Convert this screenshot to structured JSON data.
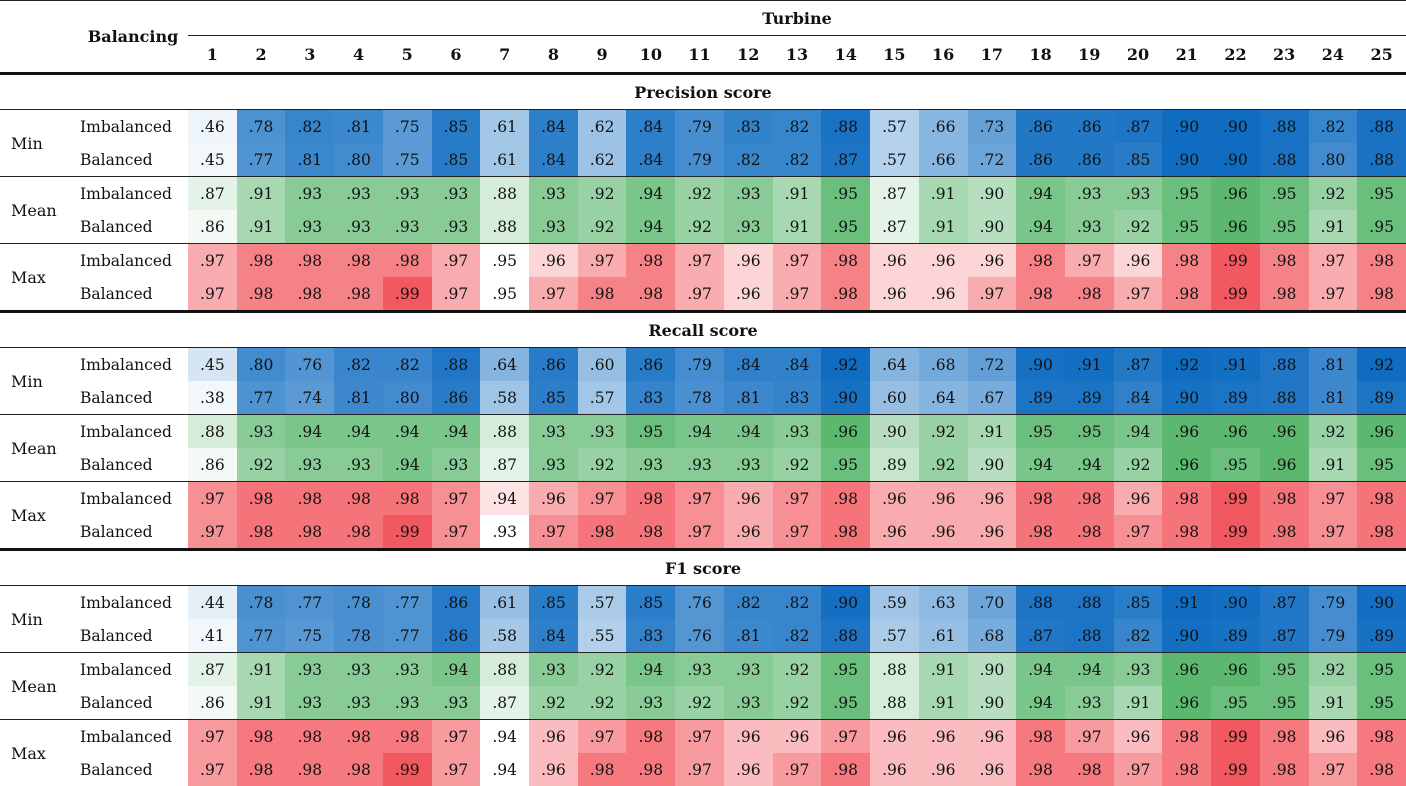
{
  "header": {
    "balancing_label": "Balancing",
    "turbine_label": "Turbine",
    "turbines": [
      "1",
      "2",
      "3",
      "4",
      "5",
      "6",
      "7",
      "8",
      "9",
      "10",
      "11",
      "12",
      "13",
      "14",
      "15",
      "16",
      "17",
      "18",
      "19",
      "20",
      "21",
      "22",
      "23",
      "24",
      "25"
    ]
  },
  "colors": {
    "min_scale": [
      "#f2f7fb",
      "#0f6cc1"
    ],
    "mean_scale": [
      "#f3f9f4",
      "#5cb86f"
    ],
    "max_scale": [
      "#ffffff",
      "#f2585f"
    ]
  },
  "sections": [
    {
      "title": "Precision score",
      "groups": [
        {
          "label": "Min",
          "kind": "min",
          "rows": [
            {
              "label": "Imbalanced",
              "values": [
                ".46",
                ".78",
                ".82",
                ".81",
                ".75",
                ".85",
                ".61",
                ".84",
                ".62",
                ".84",
                ".79",
                ".83",
                ".82",
                ".88",
                ".57",
                ".66",
                ".73",
                ".86",
                ".86",
                ".87",
                ".90",
                ".90",
                ".88",
                ".82",
                ".88"
              ]
            },
            {
              "label": "Balanced",
              "values": [
                ".45",
                ".77",
                ".81",
                ".80",
                ".75",
                ".85",
                ".61",
                ".84",
                ".62",
                ".84",
                ".79",
                ".82",
                ".82",
                ".87",
                ".57",
                ".66",
                ".72",
                ".86",
                ".86",
                ".85",
                ".90",
                ".90",
                ".88",
                ".80",
                ".88"
              ]
            }
          ]
        },
        {
          "label": "Mean",
          "kind": "mean",
          "rows": [
            {
              "label": "Imbalanced",
              "values": [
                ".87",
                ".91",
                ".93",
                ".93",
                ".93",
                ".93",
                ".88",
                ".93",
                ".92",
                ".94",
                ".92",
                ".93",
                ".91",
                ".95",
                ".87",
                ".91",
                ".90",
                ".94",
                ".93",
                ".93",
                ".95",
                ".96",
                ".95",
                ".92",
                ".95"
              ]
            },
            {
              "label": "Balanced",
              "values": [
                ".86",
                ".91",
                ".93",
                ".93",
                ".93",
                ".93",
                ".88",
                ".93",
                ".92",
                ".94",
                ".92",
                ".93",
                ".91",
                ".95",
                ".87",
                ".91",
                ".90",
                ".94",
                ".93",
                ".92",
                ".95",
                ".96",
                ".95",
                ".91",
                ".95"
              ]
            }
          ]
        },
        {
          "label": "Max",
          "kind": "max",
          "rows": [
            {
              "label": "Imbalanced",
              "values": [
                ".97",
                ".98",
                ".98",
                ".98",
                ".98",
                ".97",
                ".95",
                ".96",
                ".97",
                ".98",
                ".97",
                ".96",
                ".97",
                ".98",
                ".96",
                ".96",
                ".96",
                ".98",
                ".97",
                ".96",
                ".98",
                ".99",
                ".98",
                ".97",
                ".98"
              ]
            },
            {
              "label": "Balanced",
              "values": [
                ".97",
                ".98",
                ".98",
                ".98",
                ".99",
                ".97",
                ".95",
                ".97",
                ".98",
                ".98",
                ".97",
                ".96",
                ".97",
                ".98",
                ".96",
                ".96",
                ".97",
                ".98",
                ".98",
                ".97",
                ".98",
                ".99",
                ".98",
                ".97",
                ".98"
              ]
            }
          ]
        }
      ]
    },
    {
      "title": "Recall score",
      "groups": [
        {
          "label": "Min",
          "kind": "min",
          "rows": [
            {
              "label": "Imbalanced",
              "values": [
                ".45",
                ".80",
                ".76",
                ".82",
                ".82",
                ".88",
                ".64",
                ".86",
                ".60",
                ".86",
                ".79",
                ".84",
                ".84",
                ".92",
                ".64",
                ".68",
                ".72",
                ".90",
                ".91",
                ".87",
                ".92",
                ".91",
                ".88",
                ".81",
                ".92"
              ]
            },
            {
              "label": "Balanced",
              "values": [
                ".38",
                ".77",
                ".74",
                ".81",
                ".80",
                ".86",
                ".58",
                ".85",
                ".57",
                ".83",
                ".78",
                ".81",
                ".83",
                ".90",
                ".60",
                ".64",
                ".67",
                ".89",
                ".89",
                ".84",
                ".90",
                ".89",
                ".88",
                ".81",
                ".89"
              ]
            }
          ]
        },
        {
          "label": "Mean",
          "kind": "mean",
          "rows": [
            {
              "label": "Imbalanced",
              "values": [
                ".88",
                ".93",
                ".94",
                ".94",
                ".94",
                ".94",
                ".88",
                ".93",
                ".93",
                ".95",
                ".94",
                ".94",
                ".93",
                ".96",
                ".90",
                ".92",
                ".91",
                ".95",
                ".95",
                ".94",
                ".96",
                ".96",
                ".96",
                ".92",
                ".96"
              ]
            },
            {
              "label": "Balanced",
              "values": [
                ".86",
                ".92",
                ".93",
                ".93",
                ".94",
                ".93",
                ".87",
                ".93",
                ".92",
                ".93",
                ".93",
                ".93",
                ".92",
                ".95",
                ".89",
                ".92",
                ".90",
                ".94",
                ".94",
                ".92",
                ".96",
                ".95",
                ".96",
                ".91",
                ".95"
              ]
            }
          ]
        },
        {
          "label": "Max",
          "kind": "max",
          "rows": [
            {
              "label": "Imbalanced",
              "values": [
                ".97",
                ".98",
                ".98",
                ".98",
                ".98",
                ".97",
                ".94",
                ".96",
                ".97",
                ".98",
                ".97",
                ".96",
                ".97",
                ".98",
                ".96",
                ".96",
                ".96",
                ".98",
                ".98",
                ".96",
                ".98",
                ".99",
                ".98",
                ".97",
                ".98"
              ]
            },
            {
              "label": "Balanced",
              "values": [
                ".97",
                ".98",
                ".98",
                ".98",
                ".99",
                ".97",
                ".93",
                ".97",
                ".98",
                ".98",
                ".97",
                ".96",
                ".97",
                ".98",
                ".96",
                ".96",
                ".96",
                ".98",
                ".98",
                ".97",
                ".98",
                ".99",
                ".98",
                ".97",
                ".98"
              ]
            }
          ]
        }
      ]
    },
    {
      "title": "F1 score",
      "groups": [
        {
          "label": "Min",
          "kind": "min",
          "rows": [
            {
              "label": "Imbalanced",
              "values": [
                ".44",
                ".78",
                ".77",
                ".78",
                ".77",
                ".86",
                ".61",
                ".85",
                ".57",
                ".85",
                ".76",
                ".82",
                ".82",
                ".90",
                ".59",
                ".63",
                ".70",
                ".88",
                ".88",
                ".85",
                ".91",
                ".90",
                ".87",
                ".79",
                ".90"
              ]
            },
            {
              "label": "Balanced",
              "values": [
                ".41",
                ".77",
                ".75",
                ".78",
                ".77",
                ".86",
                ".58",
                ".84",
                ".55",
                ".83",
                ".76",
                ".81",
                ".82",
                ".88",
                ".57",
                ".61",
                ".68",
                ".87",
                ".88",
                ".82",
                ".90",
                ".89",
                ".87",
                ".79",
                ".89"
              ]
            }
          ]
        },
        {
          "label": "Mean",
          "kind": "mean",
          "rows": [
            {
              "label": "Imbalanced",
              "values": [
                ".87",
                ".91",
                ".93",
                ".93",
                ".93",
                ".94",
                ".88",
                ".93",
                ".92",
                ".94",
                ".93",
                ".93",
                ".92",
                ".95",
                ".88",
                ".91",
                ".90",
                ".94",
                ".94",
                ".93",
                ".96",
                ".96",
                ".95",
                ".92",
                ".95"
              ]
            },
            {
              "label": "Balanced",
              "values": [
                ".86",
                ".91",
                ".93",
                ".93",
                ".93",
                ".93",
                ".87",
                ".92",
                ".92",
                ".93",
                ".92",
                ".93",
                ".92",
                ".95",
                ".88",
                ".91",
                ".90",
                ".94",
                ".93",
                ".91",
                ".96",
                ".95",
                ".95",
                ".91",
                ".95"
              ]
            }
          ]
        },
        {
          "label": "Max",
          "kind": "max",
          "rows": [
            {
              "label": "Imbalanced",
              "values": [
                ".97",
                ".98",
                ".98",
                ".98",
                ".98",
                ".97",
                ".94",
                ".96",
                ".97",
                ".98",
                ".97",
                ".96",
                ".96",
                ".97",
                ".96",
                ".96",
                ".96",
                ".98",
                ".97",
                ".96",
                ".98",
                ".99",
                ".98",
                ".96",
                ".98"
              ]
            },
            {
              "label": "Balanced",
              "values": [
                ".97",
                ".98",
                ".98",
                ".98",
                ".99",
                ".97",
                ".94",
                ".96",
                ".98",
                ".98",
                ".97",
                ".96",
                ".97",
                ".98",
                ".96",
                ".96",
                ".96",
                ".98",
                ".98",
                ".97",
                ".98",
                ".99",
                ".98",
                ".97",
                ".98"
              ]
            }
          ]
        }
      ]
    }
  ]
}
